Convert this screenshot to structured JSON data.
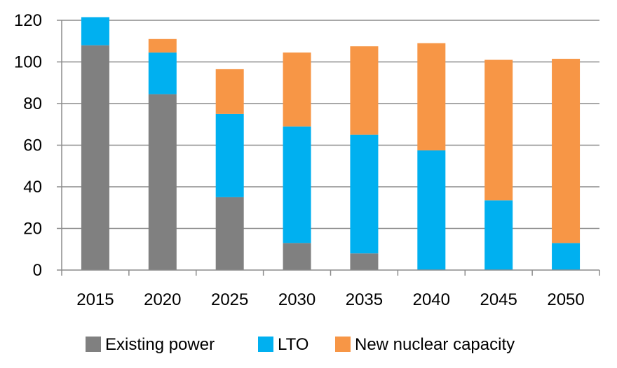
{
  "chart_data": {
    "type": "bar",
    "stacked": true,
    "title": "",
    "xlabel": "",
    "ylabel": "",
    "categories": [
      "2015",
      "2020",
      "2025",
      "2030",
      "2035",
      "2040",
      "2045",
      "2050"
    ],
    "ylim": [
      0,
      120
    ],
    "yticks": [
      0,
      20,
      40,
      60,
      80,
      100,
      120
    ],
    "grid": true,
    "legend_position": "bottom",
    "series": [
      {
        "name": "Existing power",
        "color": "#808080",
        "values": [
          108,
          84.5,
          35,
          13,
          8,
          0,
          0,
          0
        ]
      },
      {
        "name": "LTO",
        "color": "#00B0F0",
        "values": [
          13.5,
          20,
          40,
          56,
          57,
          57.5,
          33.5,
          13
        ]
      },
      {
        "name": "New nuclear capacity",
        "color": "#F79646",
        "values": [
          0,
          6.5,
          21.5,
          35.5,
          42.5,
          51.5,
          67.5,
          88.5
        ]
      }
    ]
  }
}
